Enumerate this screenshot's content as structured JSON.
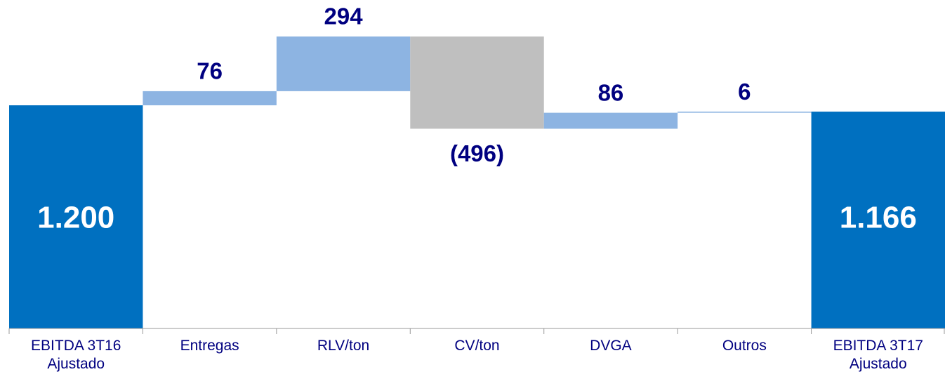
{
  "chart_data": {
    "type": "waterfall",
    "categories": [
      "EBITDA 3T16 Ajustado",
      "Entregas",
      "RLV/ton",
      "CV/ton",
      "DVGA",
      "Outros",
      "EBITDA 3T17 Ajustado"
    ],
    "values": [
      1200,
      76,
      294,
      -496,
      86,
      6,
      1166
    ],
    "value_labels": [
      "1.200",
      "76",
      "294",
      "(496)",
      "86",
      "6",
      "1.166"
    ],
    "measure": [
      "total",
      "relative",
      "relative",
      "relative",
      "relative",
      "relative",
      "total"
    ],
    "colors": {
      "total": "#0070c0",
      "increase": "#8db4e2",
      "decrease": "#bfbfbf"
    }
  }
}
